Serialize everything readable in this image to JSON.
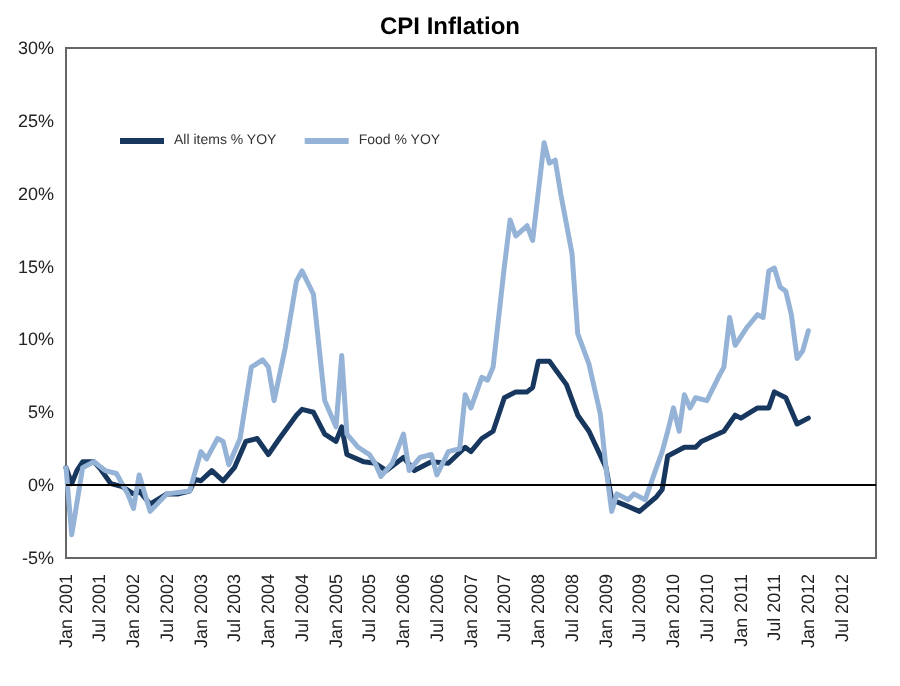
{
  "chart_data": {
    "type": "line",
    "title": "CPI Inflation",
    "xlim": [
      "2001-01",
      "2013-01"
    ],
    "xticks": [
      {
        "value": "2001-01",
        "label": "Jan 2001"
      },
      {
        "value": "2001-07",
        "label": "Jul 2001"
      },
      {
        "value": "2002-01",
        "label": "Jan 2002"
      },
      {
        "value": "2002-07",
        "label": "Jul 2002"
      },
      {
        "value": "2003-01",
        "label": "Jan 2003"
      },
      {
        "value": "2003-07",
        "label": "Jul 2003"
      },
      {
        "value": "2004-01",
        "label": "Jan 2004"
      },
      {
        "value": "2004-07",
        "label": "Jul 2004"
      },
      {
        "value": "2005-01",
        "label": "Jan 2005"
      },
      {
        "value": "2005-07",
        "label": "Jul 2005"
      },
      {
        "value": "2006-01",
        "label": "Jan 2006"
      },
      {
        "value": "2006-07",
        "label": "Jul 2006"
      },
      {
        "value": "2007-01",
        "label": "Jan 2007"
      },
      {
        "value": "2007-07",
        "label": "Jul 2007"
      },
      {
        "value": "2008-01",
        "label": "Jan 2008"
      },
      {
        "value": "2008-07",
        "label": "Jul 2008"
      },
      {
        "value": "2009-01",
        "label": "Jan 2009"
      },
      {
        "value": "2009-07",
        "label": "Jul 2009"
      },
      {
        "value": "2010-01",
        "label": "Jan 2010"
      },
      {
        "value": "2010-07",
        "label": "Jul 2010"
      },
      {
        "value": "2011-01",
        "label": "Jan 2011"
      },
      {
        "value": "2011-07",
        "label": "Jul 2011"
      },
      {
        "value": "2012-01",
        "label": "Jan 2012"
      },
      {
        "value": "2012-07",
        "label": "Jul 2012"
      }
    ],
    "ylim": [
      -5,
      30
    ],
    "yticks": [
      {
        "value": -5,
        "label": "-5%"
      },
      {
        "value": 0,
        "label": "0%"
      },
      {
        "value": 5,
        "label": "5%"
      },
      {
        "value": 10,
        "label": "10%"
      },
      {
        "value": 15,
        "label": "15%"
      },
      {
        "value": 20,
        "label": "20%"
      },
      {
        "value": 25,
        "label": "25%"
      },
      {
        "value": 30,
        "label": "30%"
      }
    ],
    "grid": false,
    "legend": "top left",
    "marker": "none",
    "line_style": "solid",
    "ref_lines": [
      {
        "axis": "y",
        "value": 0,
        "color": "#000000"
      }
    ],
    "series": [
      {
        "name": "All items % YOY",
        "color": "#17375e",
        "x": [
          "2001-01",
          "2001-02",
          "2001-03",
          "2001-04",
          "2001-06",
          "2001-07",
          "2001-09",
          "2001-11",
          "2002-01",
          "2002-02",
          "2002-04",
          "2002-07",
          "2002-09",
          "2002-11",
          "2002-12",
          "2003-01",
          "2003-03",
          "2003-05",
          "2003-07",
          "2003-09",
          "2003-11",
          "2004-01",
          "2004-03",
          "2004-06",
          "2004-07",
          "2004-09",
          "2004-11",
          "2005-01",
          "2005-02",
          "2005-03",
          "2005-06",
          "2005-08",
          "2005-10",
          "2006-01",
          "2006-03",
          "2006-06",
          "2006-09",
          "2006-12",
          "2007-01",
          "2007-03",
          "2007-05",
          "2007-07",
          "2007-09",
          "2007-11",
          "2007-12",
          "2008-01",
          "2008-03",
          "2008-06",
          "2008-08",
          "2008-10",
          "2009-01",
          "2009-02",
          "2009-04",
          "2009-07",
          "2009-10",
          "2009-11",
          "2009-12",
          "2010-03",
          "2010-05",
          "2010-06",
          "2010-10",
          "2010-12",
          "2011-01",
          "2011-04",
          "2011-06",
          "2011-07",
          "2011-09",
          "2011-11",
          "2012-01"
        ],
        "values": [
          1.2,
          0.1,
          1.0,
          1.6,
          1.6,
          1.2,
          0.1,
          -0.1,
          -0.6,
          -0.4,
          -1.3,
          -0.6,
          -0.6,
          -0.4,
          0.4,
          0.3,
          1.0,
          0.3,
          1.2,
          3.0,
          3.2,
          2.1,
          3.2,
          4.8,
          5.2,
          5.0,
          3.5,
          3.0,
          4.0,
          2.1,
          1.6,
          1.5,
          1.0,
          1.9,
          1.0,
          1.6,
          1.5,
          2.6,
          2.3,
          3.2,
          3.7,
          6.0,
          6.4,
          6.4,
          6.7,
          8.5,
          8.5,
          6.9,
          4.8,
          3.7,
          1.2,
          -1.0,
          -1.3,
          -1.8,
          -0.8,
          -0.3,
          2.0,
          2.6,
          2.6,
          3.0,
          3.7,
          4.8,
          4.6,
          5.3,
          5.3,
          6.4,
          6.0,
          4.2,
          4.6
        ]
      },
      {
        "name": "Food % YOY",
        "color": "#95b3d7",
        "x": [
          "2001-01",
          "2001-02",
          "2001-04",
          "2001-06",
          "2001-08",
          "2001-10",
          "2001-12",
          "2002-01",
          "2002-02",
          "2002-04",
          "2002-07",
          "2002-11",
          "2003-01",
          "2003-02",
          "2003-04",
          "2003-05",
          "2003-06",
          "2003-08",
          "2003-10",
          "2003-12",
          "2004-01",
          "2004-02",
          "2004-04",
          "2004-06",
          "2004-07",
          "2004-09",
          "2004-11",
          "2005-01",
          "2005-02",
          "2005-03",
          "2005-05",
          "2005-07",
          "2005-08",
          "2005-09",
          "2005-11",
          "2006-01",
          "2006-02",
          "2006-04",
          "2006-06",
          "2006-07",
          "2006-09",
          "2006-11",
          "2006-12",
          "2007-01",
          "2007-03",
          "2007-04",
          "2007-05",
          "2007-07",
          "2007-08",
          "2007-09",
          "2007-11",
          "2007-12",
          "2008-02",
          "2008-03",
          "2008-04",
          "2008-05",
          "2008-07",
          "2008-08",
          "2008-10",
          "2008-12",
          "2009-01",
          "2009-02",
          "2009-03",
          "2009-05",
          "2009-06",
          "2009-08",
          "2009-10",
          "2009-11",
          "2009-12",
          "2010-01",
          "2010-02",
          "2010-03",
          "2010-04",
          "2010-05",
          "2010-07",
          "2010-09",
          "2010-10",
          "2010-11",
          "2010-12",
          "2011-02",
          "2011-04",
          "2011-05",
          "2011-06",
          "2011-07",
          "2011-08",
          "2011-09",
          "2011-10",
          "2011-11",
          "2011-12",
          "2012-01"
        ],
        "values": [
          1.2,
          -3.4,
          1.2,
          1.6,
          1.0,
          0.8,
          -0.6,
          -1.6,
          0.7,
          -1.8,
          -0.6,
          -0.4,
          2.3,
          1.8,
          3.2,
          3.0,
          1.4,
          3.2,
          8.1,
          8.6,
          8.1,
          5.8,
          9.4,
          14.0,
          14.7,
          13.1,
          5.8,
          4.0,
          8.9,
          3.5,
          2.6,
          2.1,
          1.5,
          0.6,
          1.5,
          3.5,
          1.0,
          1.9,
          2.1,
          0.7,
          2.3,
          2.5,
          6.2,
          5.3,
          7.4,
          7.2,
          8.1,
          15.0,
          18.2,
          17.1,
          17.8,
          16.8,
          23.5,
          22.1,
          22.3,
          20.0,
          15.9,
          10.4,
          8.3,
          4.9,
          1.2,
          -1.8,
          -0.6,
          -1.0,
          -0.6,
          -1.0,
          1.2,
          2.3,
          3.7,
          5.3,
          3.7,
          6.2,
          5.3,
          6.0,
          5.8,
          7.4,
          8.1,
          11.5,
          9.6,
          10.8,
          11.7,
          11.5,
          14.7,
          14.9,
          13.6,
          13.3,
          11.7,
          8.7,
          9.2,
          10.6
        ]
      }
    ]
  }
}
